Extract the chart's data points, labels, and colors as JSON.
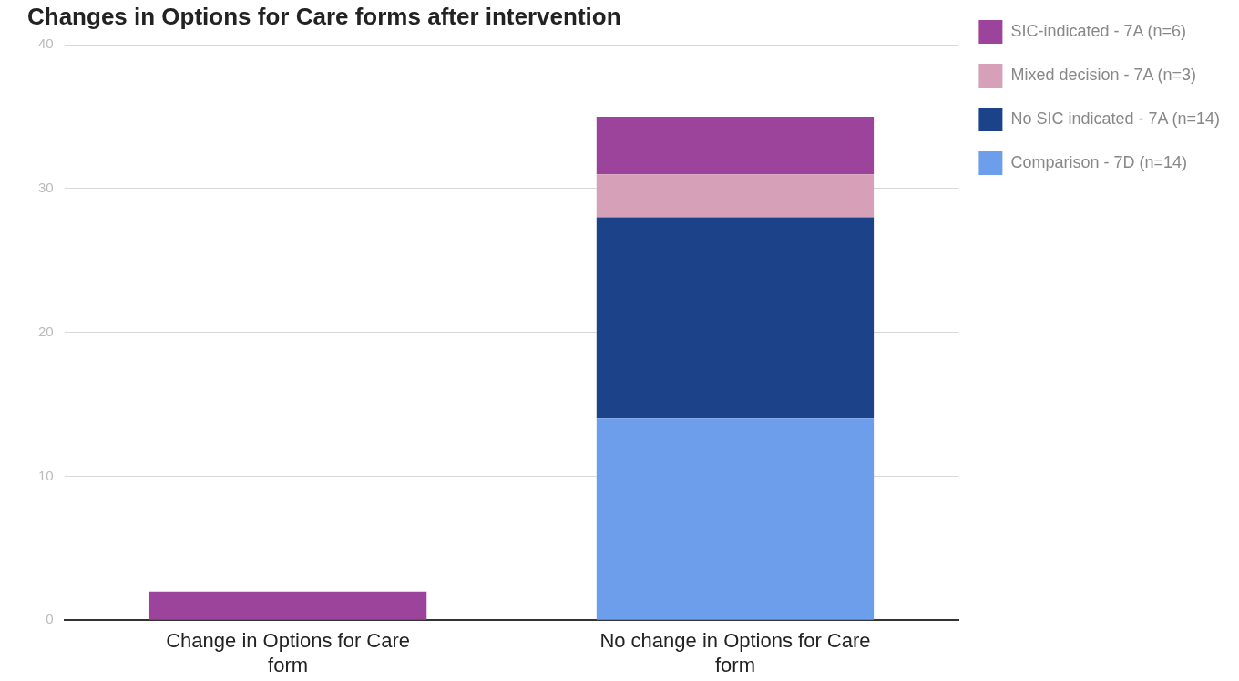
{
  "chart_data": {
    "type": "bar",
    "title": "Changes in Options for Care forms after intervention",
    "categories": [
      "Change in Options for Care form",
      "No change in Options for Care form"
    ],
    "stacked": true,
    "series": [
      {
        "name": "Comparison - 7D (n=14)",
        "color": "#6d9eeb",
        "values": [
          0,
          14
        ]
      },
      {
        "name": "No SIC indicated - 7A (n=14)",
        "color": "#1c438a",
        "values": [
          0,
          14
        ]
      },
      {
        "name": "Mixed decision - 7A (n=3)",
        "color": "#d5a0b8",
        "values": [
          0,
          3
        ]
      },
      {
        "name": "SIC-indicated - 7A (n=6)",
        "color": "#9c449c",
        "values": [
          2,
          4
        ]
      }
    ],
    "ylim": [
      0,
      40
    ],
    "yticks": [
      0,
      10,
      20,
      30,
      40
    ],
    "grid": "y",
    "legend": "top right"
  }
}
